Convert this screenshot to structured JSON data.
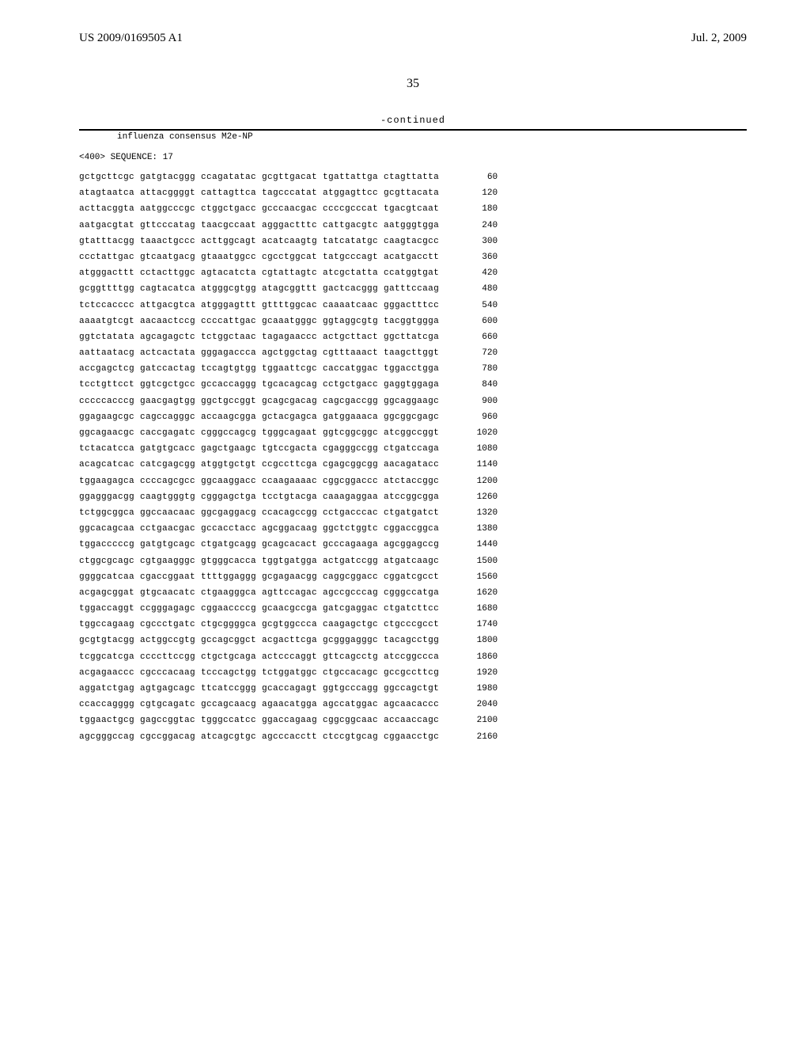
{
  "header": {
    "pub_number": "US 2009/0169505 A1",
    "pub_date": "Jul. 2, 2009"
  },
  "page_number": "35",
  "continued_label": "-continued",
  "seq_title": "influenza consensus M2e-NP",
  "seq_header": "<400> SEQUENCE: 17",
  "rows": [
    {
      "b": [
        "gctgcttcgc",
        "gatgtacggg",
        "ccagatatac",
        "gcgttgacat",
        "tgattattga",
        "ctagttatta"
      ],
      "p": "60"
    },
    {
      "b": [
        "atagtaatca",
        "attacggggt",
        "cattagttca",
        "tagcccatat",
        "atggagttcc",
        "gcgttacata"
      ],
      "p": "120"
    },
    {
      "b": [
        "acttacggta",
        "aatggcccgc",
        "ctggctgacc",
        "gcccaacgac",
        "ccccgcccat",
        "tgacgtcaat"
      ],
      "p": "180"
    },
    {
      "b": [
        "aatgacgtat",
        "gttcccatag",
        "taacgccaat",
        "agggactttc",
        "cattgacgtc",
        "aatgggtgga"
      ],
      "p": "240"
    },
    {
      "b": [
        "gtatttacgg",
        "taaactgccc",
        "acttggcagt",
        "acatcaagtg",
        "tatcatatgc",
        "caagtacgcc"
      ],
      "p": "300"
    },
    {
      "b": [
        "ccctattgac",
        "gtcaatgacg",
        "gtaaatggcc",
        "cgcctggcat",
        "tatgcccagt",
        "acatgacctt"
      ],
      "p": "360"
    },
    {
      "b": [
        "atgggacttt",
        "cctacttggc",
        "agtacatcta",
        "cgtattagtc",
        "atcgctatta",
        "ccatggtgat"
      ],
      "p": "420"
    },
    {
      "b": [
        "gcggttttgg",
        "cagtacatca",
        "atgggcgtgg",
        "atagcggttt",
        "gactcacggg",
        "gatttccaag"
      ],
      "p": "480"
    },
    {
      "b": [
        "tctccacccc",
        "attgacgtca",
        "atgggagttt",
        "gttttggcac",
        "caaaatcaac",
        "gggactttcc"
      ],
      "p": "540"
    },
    {
      "b": [
        "aaaatgtcgt",
        "aacaactccg",
        "ccccattgac",
        "gcaaatgggc",
        "ggtaggcgtg",
        "tacggtggga"
      ],
      "p": "600"
    },
    {
      "b": [
        "ggtctatata",
        "agcagagctc",
        "tctggctaac",
        "tagagaaccc",
        "actgcttact",
        "ggcttatcga"
      ],
      "p": "660"
    },
    {
      "b": [
        "aattaatacg",
        "actcactata",
        "gggagaccca",
        "agctggctag",
        "cgtttaaact",
        "taagcttggt"
      ],
      "p": "720"
    },
    {
      "b": [
        "accgagctcg",
        "gatccactag",
        "tccagtgtgg",
        "tggaattcgc",
        "caccatggac",
        "tggacctgga"
      ],
      "p": "780"
    },
    {
      "b": [
        "tcctgttcct",
        "ggtcgctgcc",
        "gccaccaggg",
        "tgcacagcag",
        "cctgctgacc",
        "gaggtggaga"
      ],
      "p": "840"
    },
    {
      "b": [
        "cccccacccg",
        "gaacgagtgg",
        "ggctgccggt",
        "gcagcgacag",
        "cagcgaccgg",
        "ggcaggaagc"
      ],
      "p": "900"
    },
    {
      "b": [
        "ggagaagcgc",
        "cagccagggc",
        "accaagcgga",
        "gctacgagca",
        "gatggaaaca",
        "ggcggcgagc"
      ],
      "p": "960"
    },
    {
      "b": [
        "ggcagaacgc",
        "caccgagatc",
        "cgggccagcg",
        "tgggcagaat",
        "ggtcggcggc",
        "atcggccggt"
      ],
      "p": "1020"
    },
    {
      "b": [
        "tctacatcca",
        "gatgtgcacc",
        "gagctgaagc",
        "tgtccgacta",
        "cgagggccgg",
        "ctgatccaga"
      ],
      "p": "1080"
    },
    {
      "b": [
        "acagcatcac",
        "catcgagcgg",
        "atggtgctgt",
        "ccgccttcga",
        "cgagcggcgg",
        "aacagatacc"
      ],
      "p": "1140"
    },
    {
      "b": [
        "tggaagagca",
        "ccccagcgcc",
        "ggcaaggacc",
        "ccaagaaaac",
        "cggcggaccc",
        "atctaccggc"
      ],
      "p": "1200"
    },
    {
      "b": [
        "ggagggacgg",
        "caagtgggtg",
        "cgggagctga",
        "tcctgtacga",
        "caaagaggaa",
        "atccggcgga"
      ],
      "p": "1260"
    },
    {
      "b": [
        "tctggcggca",
        "ggccaacaac",
        "ggcgaggacg",
        "ccacagccgg",
        "cctgacccac",
        "ctgatgatct"
      ],
      "p": "1320"
    },
    {
      "b": [
        "ggcacagcaa",
        "cctgaacgac",
        "gccacctacc",
        "agcggacaag",
        "ggctctggtc",
        "cggaccggca"
      ],
      "p": "1380"
    },
    {
      "b": [
        "tggacccccg",
        "gatgtgcagc",
        "ctgatgcagg",
        "gcagcacact",
        "gcccagaaga",
        "agcggagccg"
      ],
      "p": "1440"
    },
    {
      "b": [
        "ctggcgcagc",
        "cgtgaagggc",
        "gtgggcacca",
        "tggtgatgga",
        "actgatccgg",
        "atgatcaagc"
      ],
      "p": "1500"
    },
    {
      "b": [
        "ggggcatcaa",
        "cgaccggaat",
        "ttttggaggg",
        "gcgagaacgg",
        "caggcggacc",
        "cggatcgcct"
      ],
      "p": "1560"
    },
    {
      "b": [
        "acgagcggat",
        "gtgcaacatc",
        "ctgaagggca",
        "agttccagac",
        "agccgcccag",
        "cgggccatga"
      ],
      "p": "1620"
    },
    {
      "b": [
        "tggaccaggt",
        "ccgggagagc",
        "cggaaccccg",
        "gcaacgccga",
        "gatcgaggac",
        "ctgatcttcc"
      ],
      "p": "1680"
    },
    {
      "b": [
        "tggccagaag",
        "cgccctgatc",
        "ctgcggggca",
        "gcgtggccca",
        "caagagctgc",
        "ctgcccgcct"
      ],
      "p": "1740"
    },
    {
      "b": [
        "gcgtgtacgg",
        "actggccgtg",
        "gccagcggct",
        "acgacttcga",
        "gcgggagggc",
        "tacagcctgg"
      ],
      "p": "1800"
    },
    {
      "b": [
        "tcggcatcga",
        "ccccttccgg",
        "ctgctgcaga",
        "actcccaggt",
        "gttcagcctg",
        "atccggccca"
      ],
      "p": "1860"
    },
    {
      "b": [
        "acgagaaccc",
        "cgcccacaag",
        "tcccagctgg",
        "tctggatggc",
        "ctgccacagc",
        "gccgccttcg"
      ],
      "p": "1920"
    },
    {
      "b": [
        "aggatctgag",
        "agtgagcagc",
        "ttcatccggg",
        "gcaccagagt",
        "ggtgcccagg",
        "ggccagctgt"
      ],
      "p": "1980"
    },
    {
      "b": [
        "ccaccagggg",
        "cgtgcagatc",
        "gccagcaacg",
        "agaacatgga",
        "agccatggac",
        "agcaacaccc"
      ],
      "p": "2040"
    },
    {
      "b": [
        "tggaactgcg",
        "gagccggtac",
        "tgggccatcc",
        "ggaccagaag",
        "cggcggcaac",
        "accaaccagc"
      ],
      "p": "2100"
    },
    {
      "b": [
        "agcgggccag",
        "cgccggacag",
        "atcagcgtgc",
        "agcccacctt",
        "ctccgtgcag",
        "cggaacctgc"
      ],
      "p": "2160"
    }
  ]
}
